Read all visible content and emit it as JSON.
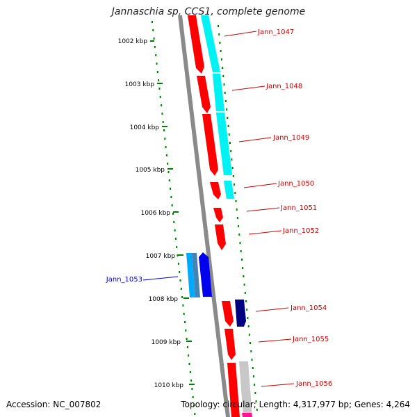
{
  "title": "Jannaschia sp. CCS1, complete genome",
  "accession": "Accession: NC_007802",
  "summary": "Topology: circular; Length: 4,317,977 bp; Genes: 4,264",
  "scale_labels": [
    "1002 kbp",
    "1003 kbp",
    "1004 kbp",
    "1005 kbp",
    "1006 kbp",
    "1007 kbp",
    "1008 kbp",
    "1009 kbp",
    "1010 kbp"
  ],
  "genes": [
    {
      "label": "Jann_1047",
      "strand": "forward"
    },
    {
      "label": "Jann_1048",
      "strand": "forward"
    },
    {
      "label": "Jann_1049",
      "strand": "forward"
    },
    {
      "label": "Jann_1050",
      "strand": "forward"
    },
    {
      "label": "Jann_1051",
      "strand": "forward"
    },
    {
      "label": "Jann_1052",
      "strand": "forward"
    },
    {
      "label": "Jann_1053",
      "strand": "reverse"
    },
    {
      "label": "Jann_1054",
      "strand": "forward"
    },
    {
      "label": "Jann_1055",
      "strand": "forward"
    },
    {
      "label": "Jann_1056",
      "strand": "forward"
    }
  ],
  "colors": {
    "forward_cds": "#ff0000",
    "forward_label": "#cc0000",
    "reverse_cds": "#0000ee",
    "reverse_label": "#0000cc",
    "reverse_cds_light": "#00aaff",
    "reverse_cds_steel": "#4682b4",
    "navy_cds": "#000080",
    "cyan_feature": "#00ffff",
    "gray_feature": "#c8c8c8",
    "magenta_feature": "#ff1493",
    "backbone": "#888888",
    "scale_ticks": "#008000"
  }
}
